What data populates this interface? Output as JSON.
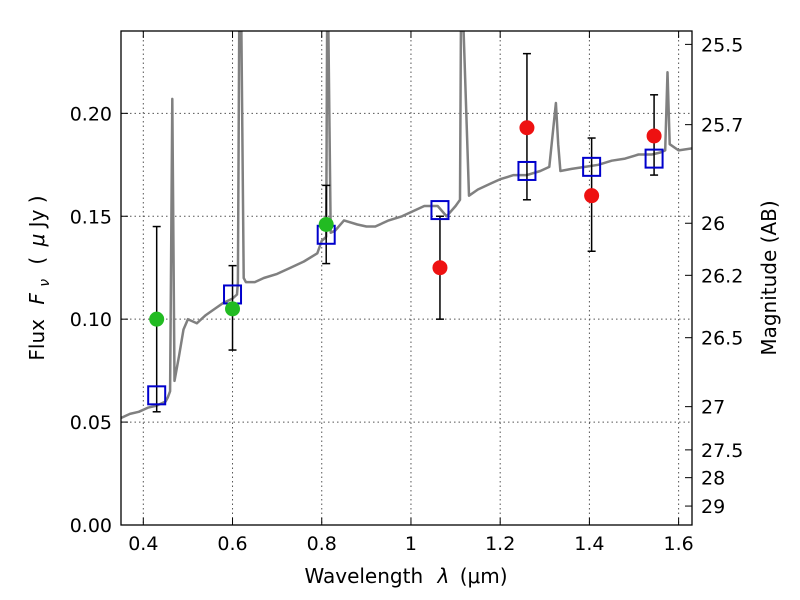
{
  "chart_data": {
    "type": "scatter",
    "title": "",
    "xlabel": "Wavelength",
    "xlabel_symbol": "λ",
    "xlabel_unit": "(μm)",
    "ylabel": "Flux",
    "ylabel_symbol": "F",
    "ylabel_subscript": "ν",
    "ylabel_unit_open": "(",
    "ylabel_unit_mu": "μ",
    "ylabel_unit_rest": "Jy )",
    "y2label": "Magnitude (AB)",
    "xlim": [
      0.35,
      1.63
    ],
    "ylim": [
      0.0,
      0.24
    ],
    "grid": true,
    "x_ticks": [
      {
        "value": 0.4,
        "label": "0.4"
      },
      {
        "value": 0.6,
        "label": "0.6"
      },
      {
        "value": 0.8,
        "label": "0.8"
      },
      {
        "value": 1.0,
        "label": "1"
      },
      {
        "value": 1.2,
        "label": "1.2"
      },
      {
        "value": 1.4,
        "label": "1.4"
      },
      {
        "value": 1.6,
        "label": "1.6"
      }
    ],
    "y_ticks": [
      {
        "value": 0.0,
        "label": "0.00"
      },
      {
        "value": 0.05,
        "label": "0.05"
      },
      {
        "value": 0.1,
        "label": "0.10"
      },
      {
        "value": 0.15,
        "label": "0.15"
      },
      {
        "value": 0.2,
        "label": "0.20"
      }
    ],
    "y2_ticks": [
      {
        "flux": 0.2335,
        "label": "25.5"
      },
      {
        "flux": 0.1945,
        "label": "25.7"
      },
      {
        "flux": 0.1466,
        "label": "26"
      },
      {
        "flux": 0.1213,
        "label": "26.2"
      },
      {
        "flux": 0.091,
        "label": "26.5"
      },
      {
        "flux": 0.0575,
        "label": "27"
      },
      {
        "flux": 0.0365,
        "label": "27.5"
      },
      {
        "flux": 0.023,
        "label": "28"
      },
      {
        "flux": 0.0092,
        "label": "29"
      }
    ],
    "colors": {
      "spectrum": "#808080",
      "model": "#0000cc",
      "detected_red": "#ee1111",
      "detected_green": "#22bb22",
      "errorbar": "#000000",
      "grid": "#555555"
    },
    "series": [
      {
        "name": "model spectrum",
        "kind": "line",
        "x": [
          0.35,
          0.37,
          0.39,
          0.41,
          0.43,
          0.45,
          0.455,
          0.46,
          0.465,
          0.47,
          0.48,
          0.49,
          0.5,
          0.52,
          0.54,
          0.56,
          0.58,
          0.6,
          0.61,
          0.612,
          0.615,
          0.62,
          0.625,
          0.63,
          0.65,
          0.67,
          0.7,
          0.73,
          0.76,
          0.79,
          0.8,
          0.81,
          0.812,
          0.815,
          0.82,
          0.83,
          0.85,
          0.88,
          0.9,
          0.92,
          0.95,
          0.98,
          1.0,
          1.03,
          1.06,
          1.08,
          1.1,
          1.11,
          1.112,
          1.118,
          1.13,
          1.15,
          1.18,
          1.2,
          1.23,
          1.26,
          1.29,
          1.31,
          1.325,
          1.33,
          1.335,
          1.36,
          1.39,
          1.42,
          1.45,
          1.48,
          1.51,
          1.54,
          1.56,
          1.57,
          1.575,
          1.58,
          1.6,
          1.63
        ],
        "y": [
          0.052,
          0.054,
          0.055,
          0.057,
          0.058,
          0.06,
          0.062,
          0.065,
          0.207,
          0.07,
          0.082,
          0.095,
          0.1,
          0.098,
          0.102,
          0.105,
          0.108,
          0.11,
          0.112,
          0.118,
          0.24,
          0.24,
          0.12,
          0.118,
          0.118,
          0.12,
          0.122,
          0.125,
          0.128,
          0.132,
          0.138,
          0.14,
          0.24,
          0.24,
          0.142,
          0.143,
          0.148,
          0.146,
          0.145,
          0.145,
          0.148,
          0.15,
          0.152,
          0.155,
          0.155,
          0.15,
          0.155,
          0.158,
          0.24,
          0.24,
          0.16,
          0.163,
          0.166,
          0.168,
          0.17,
          0.17,
          0.172,
          0.174,
          0.205,
          0.185,
          0.172,
          0.173,
          0.174,
          0.175,
          0.177,
          0.178,
          0.18,
          0.18,
          0.181,
          0.182,
          0.22,
          0.185,
          0.182,
          0.183
        ]
      },
      {
        "name": "model photometry",
        "kind": "open-square",
        "x": [
          0.43,
          0.6,
          0.81,
          1.065,
          1.26,
          1.405,
          1.545
        ],
        "y": [
          0.063,
          0.112,
          0.141,
          0.153,
          0.172,
          0.174,
          0.178
        ]
      },
      {
        "name": "observed photometry",
        "kind": "filled-circle",
        "x": [
          0.43,
          0.6,
          0.81,
          1.065,
          1.26,
          1.405,
          1.545
        ],
        "y": [
          0.1,
          0.105,
          0.146,
          0.125,
          0.193,
          0.16,
          0.189
        ],
        "color_key": [
          "detected_green",
          "detected_green",
          "detected_green",
          "detected_red",
          "detected_red",
          "detected_red",
          "detected_red"
        ],
        "err_low": [
          0.055,
          0.085,
          0.127,
          0.1,
          0.158,
          0.133,
          0.17
        ],
        "err_high": [
          0.145,
          0.126,
          0.165,
          0.15,
          0.229,
          0.188,
          0.209
        ]
      }
    ]
  }
}
